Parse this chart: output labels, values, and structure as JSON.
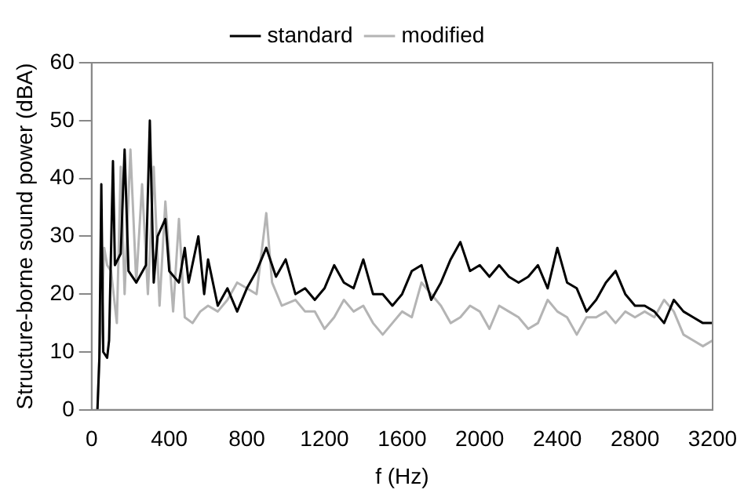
{
  "chart_data": {
    "type": "line",
    "xlabel": "f (Hz)",
    "ylabel": "Structure-borne sound power (dBA)",
    "xlim": [
      0,
      3200
    ],
    "xticks": [
      0,
      400,
      800,
      1200,
      1600,
      2000,
      2400,
      2800,
      3200
    ],
    "ylim": [
      0,
      60
    ],
    "yticks": [
      0,
      10,
      20,
      30,
      40,
      50,
      60
    ],
    "grid": false,
    "legend": "top",
    "marker": "none",
    "line_style": "solid",
    "series": [
      {
        "name": "standard",
        "color": "#000000",
        "x": [
          30,
          40,
          50,
          60,
          80,
          90,
          110,
          120,
          150,
          170,
          190,
          230,
          280,
          300,
          320,
          340,
          380,
          400,
          450,
          480,
          500,
          550,
          580,
          600,
          650,
          700,
          750,
          800,
          850,
          900,
          950,
          1000,
          1050,
          1100,
          1150,
          1200,
          1250,
          1300,
          1350,
          1400,
          1450,
          1500,
          1550,
          1600,
          1650,
          1700,
          1750,
          1800,
          1850,
          1900,
          1950,
          2000,
          2050,
          2100,
          2150,
          2200,
          2250,
          2300,
          2350,
          2400,
          2450,
          2500,
          2550,
          2600,
          2650,
          2700,
          2750,
          2800,
          2850,
          2900,
          2950,
          3000,
          3050,
          3100,
          3150,
          3200
        ],
        "values": [
          0,
          9,
          39,
          10,
          9,
          12,
          43,
          25,
          27,
          45,
          24,
          22,
          25,
          50,
          22,
          30,
          33,
          24,
          22,
          28,
          22,
          30,
          20,
          26,
          18,
          21,
          17,
          21,
          24,
          28,
          23,
          26,
          20,
          21,
          19,
          21,
          25,
          22,
          21,
          26,
          20,
          20,
          18,
          20,
          24,
          25,
          19,
          22,
          26,
          29,
          24,
          25,
          23,
          25,
          23,
          22,
          23,
          25,
          21,
          28,
          22,
          21,
          17,
          19,
          22,
          24,
          20,
          18,
          18,
          17,
          15,
          19,
          17,
          16,
          15,
          15
        ]
      },
      {
        "name": "modified",
        "color": "#b4b4b4",
        "x": [
          30,
          40,
          55,
          65,
          80,
          100,
          130,
          150,
          170,
          200,
          230,
          260,
          290,
          320,
          350,
          380,
          420,
          450,
          480,
          520,
          560,
          600,
          650,
          700,
          750,
          800,
          850,
          900,
          930,
          980,
          1050,
          1100,
          1150,
          1200,
          1250,
          1300,
          1350,
          1400,
          1450,
          1500,
          1550,
          1600,
          1650,
          1700,
          1750,
          1800,
          1850,
          1900,
          1950,
          2000,
          2050,
          2100,
          2150,
          2200,
          2250,
          2300,
          2350,
          2400,
          2450,
          2500,
          2550,
          2600,
          2650,
          2700,
          2750,
          2800,
          2850,
          2900,
          2950,
          3000,
          3050,
          3100,
          3150,
          3200
        ],
        "values": [
          0,
          9,
          18,
          28,
          25,
          24,
          15,
          42,
          20,
          45,
          22,
          39,
          20,
          42,
          18,
          36,
          17,
          33,
          16,
          15,
          17,
          18,
          17,
          19,
          22,
          21,
          20,
          34,
          22,
          18,
          19,
          17,
          17,
          14,
          16,
          19,
          17,
          18,
          15,
          13,
          15,
          17,
          16,
          22,
          20,
          18,
          15,
          16,
          18,
          17,
          14,
          18,
          17,
          16,
          14,
          15,
          19,
          17,
          16,
          13,
          16,
          16,
          17,
          15,
          17,
          16,
          17,
          16,
          19,
          17,
          13,
          12,
          11,
          12
        ]
      }
    ]
  }
}
